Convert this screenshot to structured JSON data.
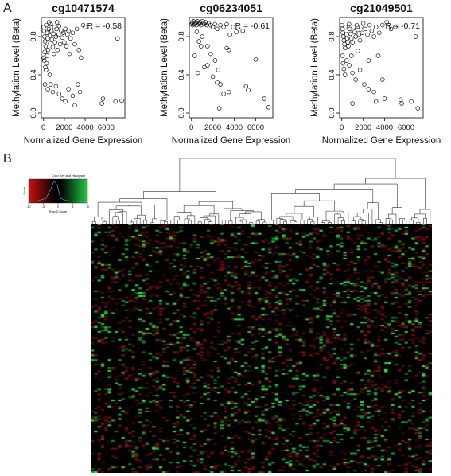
{
  "panel_labels": {
    "a": "A",
    "b": "B"
  },
  "chart_data": [
    {
      "type": "scatter",
      "title": "cg10471574",
      "xlabel": "Normalized Gene Expression",
      "ylabel": "Methylation Level (Beta)",
      "annotation": "R = -0.58",
      "xlim": [
        -200,
        7800
      ],
      "ylim": [
        -0.05,
        1.0
      ],
      "xticks": [
        0,
        2000,
        4000,
        6000
      ],
      "yticks": [
        0.0,
        0.4,
        0.8
      ],
      "tick_labels_x": [
        "0",
        "2000",
        "4000",
        "6000"
      ],
      "tick_labels_y": [
        "0.0",
        "0.4",
        "0.8"
      ],
      "marker": "open-circle",
      "points": [
        [
          20,
          0.9
        ],
        [
          60,
          0.86
        ],
        [
          100,
          0.8
        ],
        [
          150,
          0.75
        ],
        [
          210,
          0.7
        ],
        [
          260,
          0.92
        ],
        [
          320,
          0.84
        ],
        [
          400,
          0.78
        ],
        [
          450,
          0.66
        ],
        [
          520,
          0.88
        ],
        [
          600,
          0.81
        ],
        [
          650,
          0.73
        ],
        [
          700,
          0.93
        ],
        [
          760,
          0.86
        ],
        [
          820,
          0.77
        ],
        [
          900,
          0.69
        ],
        [
          980,
          0.83
        ],
        [
          1050,
          0.9
        ],
        [
          1100,
          0.74
        ],
        [
          1200,
          0.8
        ],
        [
          1250,
          0.88
        ],
        [
          1350,
          0.66
        ],
        [
          1450,
          0.82
        ],
        [
          1500,
          0.91
        ],
        [
          1600,
          0.72
        ],
        [
          1700,
          0.86
        ],
        [
          1800,
          0.79
        ],
        [
          1900,
          0.84
        ],
        [
          2000,
          0.74
        ],
        [
          2100,
          0.88
        ],
        [
          2200,
          0.7
        ],
        [
          2300,
          0.82
        ],
        [
          2400,
          0.86
        ],
        [
          2500,
          0.62
        ],
        [
          2600,
          0.78
        ],
        [
          2800,
          0.84
        ],
        [
          3000,
          0.72
        ],
        [
          3200,
          0.88
        ],
        [
          3400,
          0.66
        ],
        [
          3600,
          0.58
        ],
        [
          3800,
          0.92
        ],
        [
          4000,
          0.9
        ],
        [
          80,
          0.55
        ],
        [
          180,
          0.48
        ],
        [
          300,
          0.52
        ],
        [
          150,
          0.3
        ],
        [
          420,
          0.25
        ],
        [
          700,
          0.3
        ],
        [
          900,
          0.22
        ],
        [
          1200,
          0.28
        ],
        [
          1500,
          0.2
        ],
        [
          1800,
          0.15
        ],
        [
          2100,
          0.12
        ],
        [
          2400,
          0.25
        ],
        [
          2800,
          0.18
        ],
        [
          3300,
          0.3
        ],
        [
          3500,
          0.22
        ],
        [
          5700,
          0.15
        ],
        [
          6900,
          0.12
        ],
        [
          7500,
          0.13
        ],
        [
          5600,
          0.1
        ],
        [
          7100,
          0.78
        ],
        [
          3000,
          0.08
        ],
        [
          1000,
          0.62
        ],
        [
          600,
          0.4
        ],
        [
          350,
          0.6
        ],
        [
          120,
          0.64
        ],
        [
          40,
          0.58
        ],
        [
          250,
          0.45
        ],
        [
          550,
          0.95
        ],
        [
          1300,
          0.95
        ]
      ]
    },
    {
      "type": "scatter",
      "title": "cg06234051",
      "xlabel": "Normalized Gene Expression",
      "ylabel": "Methylation Level (Beta)",
      "annotation": "R = -0.61",
      "xlim": [
        -200,
        7600
      ],
      "ylim": [
        -0.05,
        1.0
      ],
      "xticks": [
        0,
        2000,
        4000,
        6000
      ],
      "yticks": [
        0.0,
        0.4,
        0.8
      ],
      "tick_labels_x": [
        "0",
        "2000",
        "4000",
        "6000"
      ],
      "tick_labels_y": [
        "0.0",
        "0.4",
        "0.8"
      ],
      "marker": "open-circle",
      "points": [
        [
          30,
          0.93
        ],
        [
          80,
          0.95
        ],
        [
          140,
          0.92
        ],
        [
          200,
          0.96
        ],
        [
          260,
          0.94
        ],
        [
          330,
          0.93
        ],
        [
          400,
          0.95
        ],
        [
          480,
          0.92
        ],
        [
          560,
          0.96
        ],
        [
          640,
          0.94
        ],
        [
          720,
          0.93
        ],
        [
          800,
          0.95
        ],
        [
          900,
          0.92
        ],
        [
          1000,
          0.96
        ],
        [
          1100,
          0.94
        ],
        [
          1200,
          0.93
        ],
        [
          1300,
          0.95
        ],
        [
          1450,
          0.92
        ],
        [
          1600,
          0.94
        ],
        [
          1800,
          0.92
        ],
        [
          2000,
          0.9
        ],
        [
          2200,
          0.93
        ],
        [
          2400,
          0.88
        ],
        [
          2700,
          0.92
        ],
        [
          3000,
          0.9
        ],
        [
          3300,
          0.93
        ],
        [
          3600,
          0.82
        ],
        [
          3900,
          0.9
        ],
        [
          4200,
          0.85
        ],
        [
          4800,
          0.86
        ],
        [
          1000,
          0.8
        ],
        [
          1500,
          0.7
        ],
        [
          1800,
          0.62
        ],
        [
          2200,
          0.55
        ],
        [
          2500,
          0.45
        ],
        [
          3300,
          0.68
        ],
        [
          3500,
          0.66
        ],
        [
          1200,
          0.48
        ],
        [
          2000,
          0.38
        ],
        [
          2400,
          0.32
        ],
        [
          2700,
          0.3
        ],
        [
          600,
          0.42
        ],
        [
          300,
          0.6
        ],
        [
          3000,
          0.2
        ],
        [
          3500,
          0.22
        ],
        [
          5100,
          0.28
        ],
        [
          5300,
          0.24
        ],
        [
          6000,
          0.56
        ],
        [
          6800,
          0.15
        ],
        [
          7200,
          0.06
        ],
        [
          2600,
          0.05
        ],
        [
          1500,
          0.5
        ],
        [
          900,
          0.7
        ],
        [
          700,
          0.75
        ],
        [
          500,
          0.85
        ]
      ]
    },
    {
      "type": "scatter",
      "title": "cg21049501",
      "xlabel": "Normalized Gene Expression",
      "ylabel": "Methylation Level (Beta)",
      "annotation": "R = -0.71",
      "xlim": [
        -200,
        7600
      ],
      "ylim": [
        -0.05,
        1.0
      ],
      "xticks": [
        0,
        2000,
        4000,
        6000
      ],
      "yticks": [
        0.0,
        0.4,
        0.8
      ],
      "tick_labels_x": [
        "0",
        "2000",
        "4000",
        "6000"
      ],
      "tick_labels_y": [
        "0.0",
        "0.4",
        "0.8"
      ],
      "marker": "open-circle",
      "points": [
        [
          20,
          0.92
        ],
        [
          60,
          0.88
        ],
        [
          100,
          0.84
        ],
        [
          150,
          0.8
        ],
        [
          200,
          0.76
        ],
        [
          250,
          0.72
        ],
        [
          300,
          0.68
        ],
        [
          350,
          0.9
        ],
        [
          400,
          0.86
        ],
        [
          450,
          0.82
        ],
        [
          500,
          0.78
        ],
        [
          560,
          0.74
        ],
        [
          620,
          0.7
        ],
        [
          680,
          0.93
        ],
        [
          750,
          0.88
        ],
        [
          820,
          0.83
        ],
        [
          900,
          0.78
        ],
        [
          1000,
          0.74
        ],
        [
          1100,
          0.9
        ],
        [
          1200,
          0.85
        ],
        [
          1300,
          0.8
        ],
        [
          1400,
          0.92
        ],
        [
          1500,
          0.87
        ],
        [
          1600,
          0.82
        ],
        [
          1700,
          0.76
        ],
        [
          1800,
          0.9
        ],
        [
          1900,
          0.84
        ],
        [
          2000,
          0.94
        ],
        [
          2200,
          0.88
        ],
        [
          2400,
          0.82
        ],
        [
          2600,
          0.92
        ],
        [
          2800,
          0.86
        ],
        [
          3000,
          0.8
        ],
        [
          3200,
          0.9
        ],
        [
          3500,
          0.84
        ],
        [
          3800,
          0.92
        ],
        [
          4200,
          0.95
        ],
        [
          4600,
          0.88
        ],
        [
          5000,
          0.9
        ],
        [
          60,
          0.6
        ],
        [
          120,
          0.52
        ],
        [
          200,
          0.46
        ],
        [
          300,
          0.4
        ],
        [
          450,
          0.55
        ],
        [
          700,
          0.5
        ],
        [
          1000,
          0.42
        ],
        [
          1300,
          0.35
        ],
        [
          1700,
          0.45
        ],
        [
          2100,
          0.3
        ],
        [
          2500,
          0.25
        ],
        [
          3000,
          0.22
        ],
        [
          3400,
          0.6
        ],
        [
          3800,
          0.35
        ],
        [
          3200,
          0.12
        ],
        [
          4000,
          0.15
        ],
        [
          5500,
          0.14
        ],
        [
          5600,
          0.1
        ],
        [
          6500,
          0.12
        ],
        [
          7100,
          0.05
        ],
        [
          6900,
          0.8
        ],
        [
          1000,
          0.1
        ],
        [
          2500,
          0.55
        ],
        [
          1500,
          0.65
        ],
        [
          900,
          0.6
        ]
      ]
    }
  ],
  "heatmap": {
    "legend": {
      "title": "Color Key and Histogram",
      "ylabel": "Count",
      "xlabel": "Row Z-Score",
      "ticks": [
        "-10",
        "-5",
        "0",
        "5",
        "10"
      ],
      "colors": {
        "low": "#cc1111",
        "mid": "#000000",
        "high": "#22cc44"
      }
    },
    "colors": {
      "background": "#000000",
      "low": "#8b1a1a",
      "high": "#2fd14a"
    }
  }
}
